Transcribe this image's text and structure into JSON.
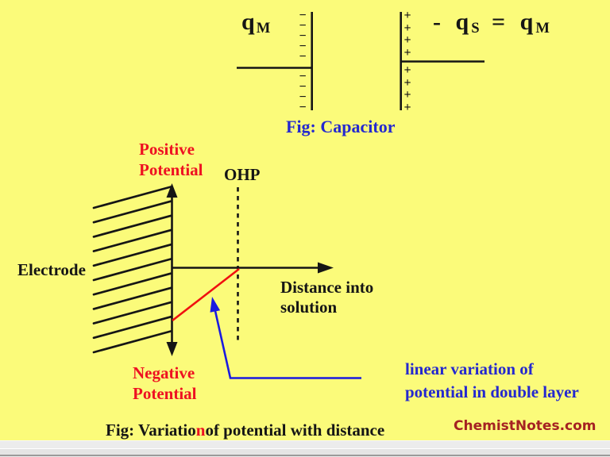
{
  "colors": {
    "bg": "#FBFB7A",
    "ink": "#151515",
    "red": "#EE1122",
    "blue": "#2428CF",
    "red_line": "#F01010",
    "blue_arrow": "#1A1AE0",
    "maroon": "#A52222",
    "bar": "#ECECEC"
  },
  "capacitor": {
    "left_label": {
      "base": "q",
      "sub": "M"
    },
    "right_label": {
      "prefix": "- q",
      "sub1": "S",
      "mid": " = q",
      "sub2": "M"
    },
    "left_plate": {
      "signs_above": "−\n−\n−\n−\n−",
      "signs_below": "−\n−\n−\n−"
    },
    "right_plate": {
      "signs_above": "+\n+\n+\n+",
      "signs_below": "+\n+\n+\n+"
    },
    "caption": "Fig: Capacitor"
  },
  "graph": {
    "positive_label": "Positive\nPotential",
    "ohp_label": "OHP",
    "electrode_label": "Electrode",
    "x_axis_label": "Distance into\nsolution",
    "negative_label": "Negative\nPotential",
    "annotation": "linear variation of\npotential in double layer"
  },
  "caption": {
    "part1": "Fig: Variatio",
    "part2": "n",
    "part3": "of potential with distance"
  },
  "watermark": "ChemistNotes.com"
}
